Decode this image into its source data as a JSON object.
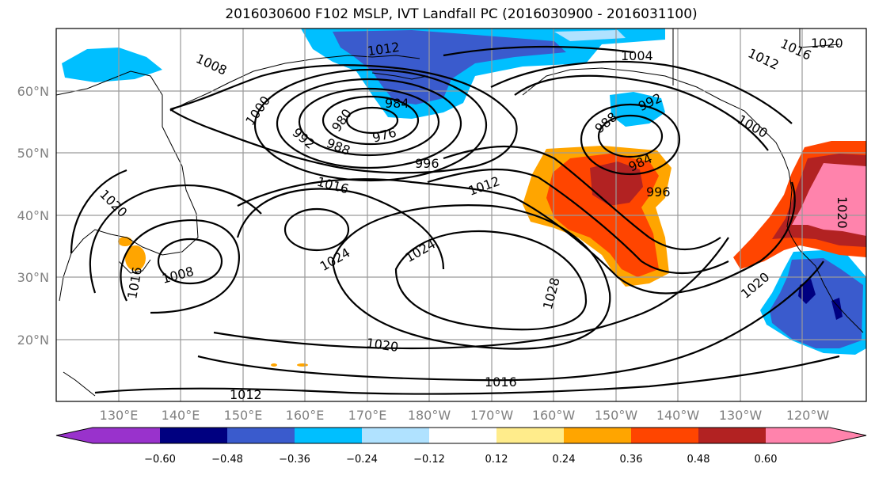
{
  "title": "2016030600 F102 MSLP, IVT Landfall PC (2016030900 - 2016031100)",
  "lat_ticks": [
    "60°N",
    "50°N",
    "40°N",
    "30°N",
    "20°N"
  ],
  "lon_ticks": [
    "130°E",
    "140°E",
    "150°E",
    "160°E",
    "170°E",
    "180°W",
    "170°W",
    "160°W",
    "150°W",
    "140°W",
    "130°W",
    "120°W"
  ],
  "contour_labels": [
    "1020",
    "1016",
    "1012",
    "1012",
    "1004",
    "1008",
    "1000",
    "984",
    "992",
    "980",
    "976",
    "988",
    "992",
    "988",
    "984",
    "996",
    "1000",
    "996",
    "1012",
    "1016",
    "1020",
    "1024",
    "1024",
    "1008",
    "1016",
    "1020",
    "1028",
    "1020",
    "1020",
    "1016",
    "1012"
  ],
  "colorbar": {
    "colors": [
      "#9932cc",
      "#000080",
      "#3a5bcd",
      "#00bfff",
      "#b0e2ff",
      "#ffffff",
      "#ffec8b",
      "#ffa500",
      "#ff4500",
      "#b22222",
      "#ff83ac"
    ],
    "tick_labels": [
      "−0.60",
      "−0.48",
      "−0.36",
      "−0.24",
      "−0.12",
      "0.12",
      "0.24",
      "0.36",
      "0.48",
      "0.60"
    ]
  }
}
